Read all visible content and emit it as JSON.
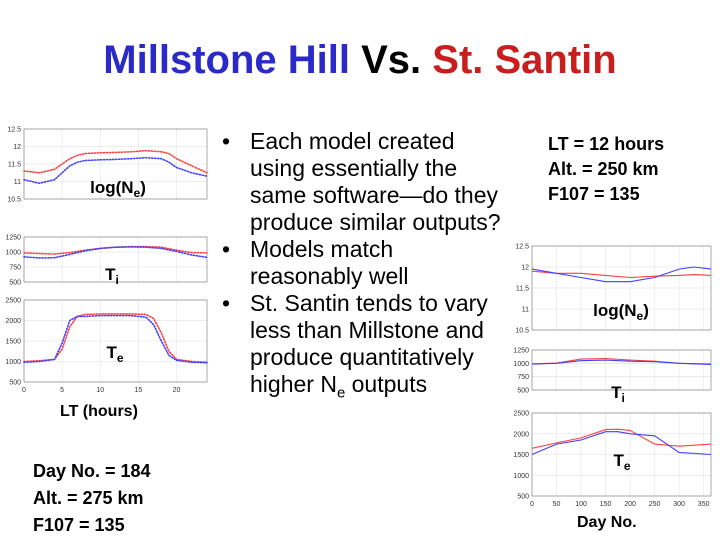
{
  "title": {
    "part1": "Millstone Hill",
    "part2": "Vs.",
    "part3": "St. Santin"
  },
  "colors": {
    "millstone": "#2a2ac8",
    "st_santin": "#c81e1e",
    "series_blue": "#4040ff",
    "series_red": "#ff4040"
  },
  "bullets": [
    {
      "text": "Each model created using essentially the same software—do they produce similar outputs?"
    },
    {
      "text": "Models match reasonably well"
    },
    {
      "text_main": "St. Santin tends to vary less than Millstone and produce quantitatively higher N",
      "text_sub": "e",
      "text_tail": " outputs"
    }
  ],
  "left_panel": {
    "xlabel": "LT (hours)",
    "params": [
      "Day No. = 184",
      "Alt. = 275 km",
      "F107 = 135"
    ]
  },
  "right_panel": {
    "xlabel": "Day No.",
    "params": [
      "LT = 12 hours",
      "Alt. = 250 km",
      "F107 = 135"
    ]
  },
  "chart_data": [
    {
      "id": "left-ne",
      "type": "line",
      "label_main": "log(N",
      "label_sub": "e",
      "label_tail": ")",
      "ylim": [
        10.5,
        12.5
      ],
      "yticks": [
        "12.5",
        "12",
        "11.5",
        "11",
        "10.5"
      ],
      "xlim": [
        0,
        24
      ],
      "grid": true,
      "series": [
        {
          "color": "red",
          "x": [
            0,
            2,
            4,
            5,
            6,
            7,
            8,
            10,
            12,
            14,
            16,
            18,
            19,
            20,
            22,
            24
          ],
          "values": [
            11.3,
            11.25,
            11.35,
            11.5,
            11.65,
            11.75,
            11.8,
            11.82,
            11.83,
            11.85,
            11.88,
            11.85,
            11.8,
            11.65,
            11.45,
            11.25
          ]
        },
        {
          "color": "blue",
          "x": [
            0,
            2,
            4,
            5,
            6,
            7,
            8,
            10,
            12,
            14,
            16,
            18,
            19,
            20,
            22,
            24
          ],
          "values": [
            11.05,
            10.95,
            11.05,
            11.25,
            11.45,
            11.55,
            11.6,
            11.62,
            11.63,
            11.65,
            11.68,
            11.65,
            11.55,
            11.4,
            11.25,
            11.15
          ]
        }
      ]
    },
    {
      "id": "left-ti",
      "type": "line",
      "label_main": "T",
      "label_sub": "i",
      "label_tail": "",
      "ylim": [
        500,
        1250
      ],
      "yticks": [
        "1250",
        "1000",
        "750",
        "500"
      ],
      "xlim": [
        0,
        24
      ],
      "grid": true,
      "series": [
        {
          "color": "red",
          "x": [
            0,
            2,
            4,
            6,
            8,
            10,
            12,
            14,
            16,
            18,
            20,
            22,
            24
          ],
          "values": [
            985,
            975,
            965,
            990,
            1030,
            1060,
            1080,
            1090,
            1090,
            1080,
            1030,
            990,
            985
          ]
        },
        {
          "color": "blue",
          "x": [
            0,
            2,
            4,
            6,
            8,
            10,
            12,
            14,
            16,
            18,
            20,
            22,
            24
          ],
          "values": [
            920,
            900,
            905,
            960,
            1020,
            1060,
            1080,
            1085,
            1080,
            1060,
            1010,
            950,
            910
          ]
        }
      ]
    },
    {
      "id": "left-te",
      "type": "line",
      "label_main": "T",
      "label_sub": "e",
      "label_tail": "",
      "ylim": [
        500,
        2500
      ],
      "yticks": [
        "2500",
        "2000",
        "1500",
        "1000",
        "500"
      ],
      "xlim": [
        0,
        24
      ],
      "xticks": [
        "0",
        "5",
        "10",
        "15",
        "20"
      ],
      "grid": true,
      "series": [
        {
          "color": "red",
          "x": [
            0,
            2,
            4,
            5,
            6,
            7,
            8,
            10,
            12,
            14,
            16,
            17,
            18,
            19,
            20,
            22,
            24
          ],
          "values": [
            1000,
            1020,
            1050,
            1300,
            1850,
            2100,
            2150,
            2160,
            2160,
            2160,
            2150,
            2050,
            1700,
            1250,
            1050,
            1000,
            980
          ]
        },
        {
          "color": "blue",
          "x": [
            0,
            2,
            4,
            5,
            6,
            7,
            8,
            10,
            12,
            14,
            16,
            17,
            18,
            19,
            20,
            22,
            24
          ],
          "values": [
            980,
            1000,
            1050,
            1450,
            2000,
            2100,
            2100,
            2120,
            2120,
            2120,
            2080,
            1900,
            1500,
            1150,
            1030,
            980,
            970
          ]
        }
      ]
    },
    {
      "id": "right-ne",
      "type": "line",
      "label_main": "log(N",
      "label_sub": "e",
      "label_tail": ")",
      "ylim": [
        10.5,
        12.5
      ],
      "yticks": [
        "12.5",
        "12",
        "11.5",
        "11",
        "10.5"
      ],
      "xlim": [
        0,
        365
      ],
      "grid": true,
      "series": [
        {
          "color": "red",
          "x": [
            0,
            50,
            100,
            150,
            200,
            250,
            300,
            330,
            365
          ],
          "values": [
            11.9,
            11.85,
            11.85,
            11.8,
            11.75,
            11.78,
            11.8,
            11.82,
            11.8
          ]
        },
        {
          "color": "blue",
          "x": [
            0,
            50,
            100,
            150,
            200,
            250,
            300,
            330,
            365
          ],
          "values": [
            11.95,
            11.85,
            11.75,
            11.65,
            11.65,
            11.75,
            11.95,
            12.0,
            11.95
          ]
        }
      ]
    },
    {
      "id": "right-ti",
      "type": "line",
      "label_main": "T",
      "label_sub": "i",
      "label_tail": "",
      "ylim": [
        500,
        1250
      ],
      "yticks": [
        "1250",
        "1000",
        "750",
        "500"
      ],
      "xlim": [
        0,
        365
      ],
      "grid": true,
      "series": [
        {
          "color": "red",
          "x": [
            0,
            50,
            100,
            150,
            200,
            250,
            300,
            365
          ],
          "values": [
            990,
            1005,
            1080,
            1090,
            1060,
            1040,
            1000,
            985
          ]
        },
        {
          "color": "blue",
          "x": [
            0,
            50,
            100,
            150,
            200,
            250,
            300,
            365
          ],
          "values": [
            985,
            1000,
            1050,
            1060,
            1040,
            1030,
            1000,
            980
          ]
        }
      ]
    },
    {
      "id": "right-te",
      "type": "line",
      "label_main": "T",
      "label_sub": "e",
      "label_tail": "",
      "ylim": [
        500,
        2500
      ],
      "yticks": [
        "2500",
        "2000",
        "1500",
        "1000",
        "500"
      ],
      "xlim": [
        0,
        365
      ],
      "xticks": [
        "0",
        "50",
        "100",
        "150",
        "200",
        "250",
        "300",
        "350"
      ],
      "grid": true,
      "series": [
        {
          "color": "red",
          "x": [
            0,
            50,
            100,
            150,
            175,
            200,
            250,
            300,
            365
          ],
          "values": [
            1650,
            1780,
            1900,
            2100,
            2110,
            2080,
            1750,
            1700,
            1750
          ]
        },
        {
          "color": "blue",
          "x": [
            0,
            50,
            100,
            150,
            175,
            200,
            250,
            300,
            365
          ],
          "values": [
            1500,
            1750,
            1850,
            2050,
            2050,
            2000,
            1950,
            1550,
            1500
          ]
        }
      ]
    }
  ]
}
